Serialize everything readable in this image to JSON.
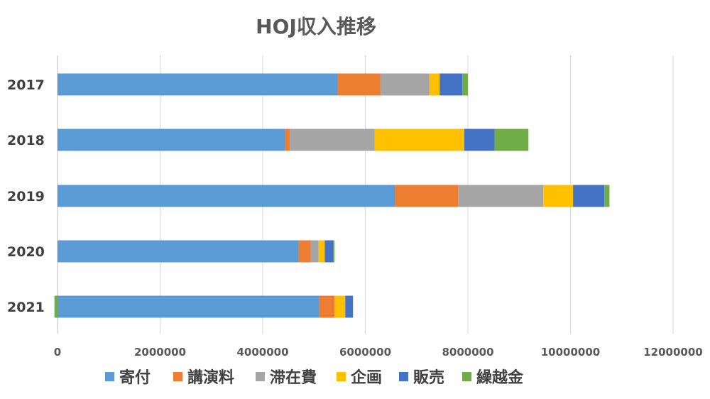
{
  "chart_data": {
    "type": "bar",
    "orientation": "horizontal",
    "stacked": true,
    "title": "HOJ収入推移",
    "categories": [
      "2017",
      "2018",
      "2019",
      "2020",
      "2021"
    ],
    "x_ticks": [
      "0",
      "2000000",
      "4000000",
      "6000000",
      "8000000",
      "10000000",
      "12000000"
    ],
    "xlim": [
      0,
      12000000
    ],
    "grid": true,
    "legend_position": "bottom",
    "series": [
      {
        "name": "寄付",
        "color": "#5b9bd5",
        "values": [
          5460000,
          4440000,
          6580000,
          4700000,
          5110000
        ]
      },
      {
        "name": "講演料",
        "color": "#ed7d31",
        "values": [
          840000,
          90000,
          1230000,
          240000,
          290000
        ]
      },
      {
        "name": "滞在費",
        "color": "#a5a5a5",
        "values": [
          950000,
          1650000,
          1660000,
          150000,
          0
        ]
      },
      {
        "name": "企画",
        "color": "#ffc000",
        "values": [
          200000,
          1750000,
          580000,
          120000,
          210000
        ]
      },
      {
        "name": "販売",
        "color": "#4472c4",
        "values": [
          440000,
          590000,
          610000,
          170000,
          150000
        ]
      },
      {
        "name": "繰越金",
        "color": "#70ad47",
        "values": [
          110000,
          660000,
          100000,
          20000,
          -60000
        ]
      }
    ]
  }
}
